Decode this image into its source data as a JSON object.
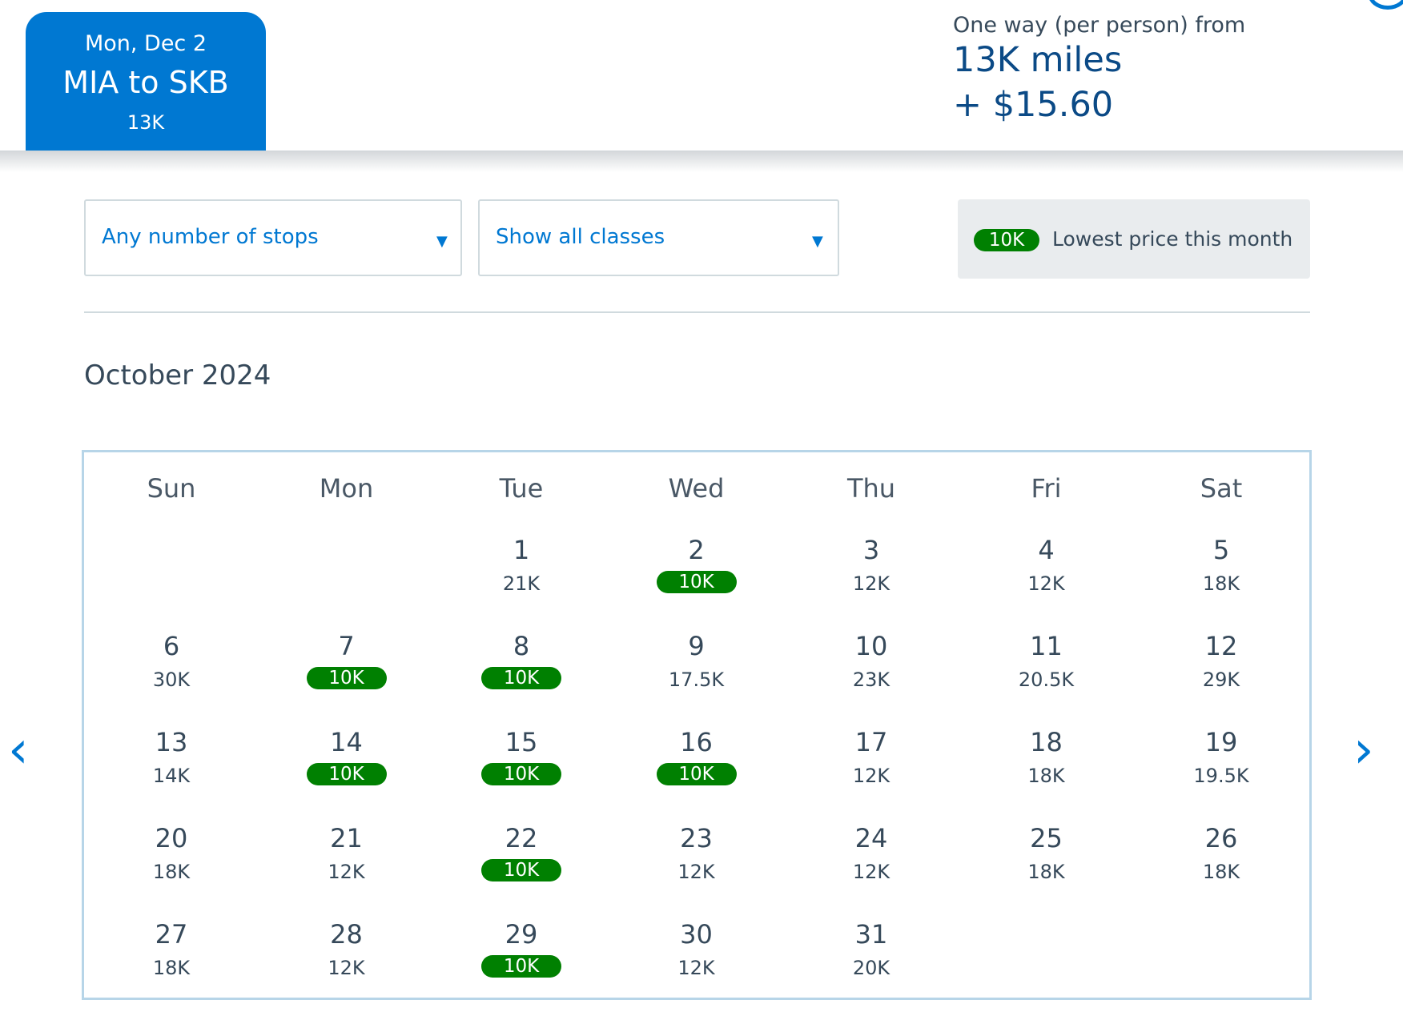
{
  "trip": {
    "date": "Mon, Dec 2",
    "route": "MIA to SKB",
    "miles": "13K"
  },
  "price": {
    "label": "One way (per person) from",
    "miles": "13K miles",
    "cash": "+ $15.60"
  },
  "filters": {
    "stops": "Any number of stops",
    "classes": "Show all classes"
  },
  "legend": {
    "badge": "10K",
    "text": "Lowest price this month"
  },
  "calendar": {
    "month": "October 2024",
    "weekdays": [
      "Sun",
      "Mon",
      "Tue",
      "Wed",
      "Thu",
      "Fri",
      "Sat"
    ],
    "days": [
      {
        "d": "1",
        "p": "21K",
        "low": false
      },
      {
        "d": "2",
        "p": "10K",
        "low": true
      },
      {
        "d": "3",
        "p": "12K",
        "low": false
      },
      {
        "d": "4",
        "p": "12K",
        "low": false
      },
      {
        "d": "5",
        "p": "18K",
        "low": false
      },
      {
        "d": "6",
        "p": "30K",
        "low": false
      },
      {
        "d": "7",
        "p": "10K",
        "low": true
      },
      {
        "d": "8",
        "p": "10K",
        "low": true
      },
      {
        "d": "9",
        "p": "17.5K",
        "low": false
      },
      {
        "d": "10",
        "p": "23K",
        "low": false
      },
      {
        "d": "11",
        "p": "20.5K",
        "low": false
      },
      {
        "d": "12",
        "p": "29K",
        "low": false
      },
      {
        "d": "13",
        "p": "14K",
        "low": false
      },
      {
        "d": "14",
        "p": "10K",
        "low": true
      },
      {
        "d": "15",
        "p": "10K",
        "low": true
      },
      {
        "d": "16",
        "p": "10K",
        "low": true
      },
      {
        "d": "17",
        "p": "12K",
        "low": false
      },
      {
        "d": "18",
        "p": "18K",
        "low": false
      },
      {
        "d": "19",
        "p": "19.5K",
        "low": false
      },
      {
        "d": "20",
        "p": "18K",
        "low": false
      },
      {
        "d": "21",
        "p": "12K",
        "low": false
      },
      {
        "d": "22",
        "p": "10K",
        "low": true
      },
      {
        "d": "23",
        "p": "12K",
        "low": false
      },
      {
        "d": "24",
        "p": "12K",
        "low": false
      },
      {
        "d": "25",
        "p": "18K",
        "low": false
      },
      {
        "d": "26",
        "p": "18K",
        "low": false
      },
      {
        "d": "27",
        "p": "18K",
        "low": false
      },
      {
        "d": "28",
        "p": "12K",
        "low": false
      },
      {
        "d": "29",
        "p": "10K",
        "low": true
      },
      {
        "d": "30",
        "p": "12K",
        "low": false
      },
      {
        "d": "31",
        "p": "20K",
        "low": false
      }
    ]
  },
  "icons": {
    "prev": "chevron-left-icon",
    "next": "chevron-right-icon",
    "dropdown": "caret-down-icon"
  },
  "colors": {
    "brand": "#0078d2",
    "lowest": "#008001",
    "navy": "#0b4a86"
  }
}
